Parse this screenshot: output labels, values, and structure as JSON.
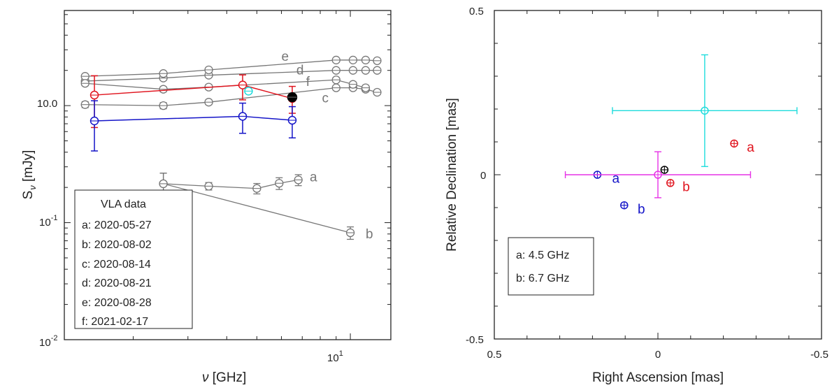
{
  "colors": {
    "gray": "#777777",
    "red": "#e0141e",
    "blue": "#1414c8",
    "cyan": "#1edcdc",
    "magenta": "#e632e6",
    "black": "#000000"
  },
  "chart_data": [
    {
      "type": "scatter",
      "title": "",
      "xlabel": "ν [GHz]",
      "ylabel": "S_ν [mJy]",
      "ylabel_main": "S",
      "ylabel_sub": "ν",
      "ylabel_unit": " [mJy]",
      "xscale": "log",
      "yscale": "log",
      "xlim": [
        1.2,
        13.5
      ],
      "ylim": [
        0.01,
        6.5
      ],
      "xticks": [
        {
          "value": 10,
          "label": "10",
          "base": "10",
          "exp": "1"
        }
      ],
      "yticks": [
        {
          "value": 0.01,
          "label": "10-2",
          "base": "10",
          "exp": "-2"
        },
        {
          "value": 0.1,
          "label": "10-1",
          "base": "10",
          "exp": "-1"
        },
        {
          "value": 1,
          "label": "10.0",
          "base": "10.0",
          "exp": ""
        }
      ],
      "series": [
        {
          "name": "a",
          "color": "gray",
          "x": [
            2.5,
            3.5,
            5.0,
            5.9,
            6.8
          ],
          "y": [
            0.215,
            0.205,
            0.196,
            0.217,
            0.232
          ],
          "yerr": [
            0.05,
            0.015,
            0.02,
            0.025,
            0.025
          ],
          "label_at": [
            7.4,
            0.245
          ]
        },
        {
          "name": "b",
          "color": "gray",
          "x": [
            2.5,
            10.0
          ],
          "y": [
            0.215,
            0.082
          ],
          "yerr": [
            0.05,
            0.01
          ],
          "label_at": [
            11.2,
            0.08
          ]
        },
        {
          "name": "c",
          "color": "gray",
          "x": [
            1.4,
            2.5,
            3.5,
            9.0,
            10.2,
            11.2,
            12.2
          ],
          "y": [
            1.02,
            1.0,
            1.07,
            1.42,
            1.42,
            1.38,
            1.3
          ],
          "yerr": [
            0.06,
            0.06,
            0.05,
            0.06,
            0.06,
            0.06,
            0.06
          ],
          "label_at": [
            8.1,
            1.16
          ]
        },
        {
          "name": "d",
          "color": "gray",
          "x": [
            1.4,
            2.5,
            3.5,
            9.0,
            10.2,
            11.2,
            12.2
          ],
          "y": [
            1.62,
            1.72,
            1.82,
            2.0,
            2.0,
            2.0,
            2.0
          ],
          "yerr": [
            0.07,
            0.07,
            0.07,
            0.07,
            0.07,
            0.07,
            0.07
          ],
          "label_at": [
            6.7,
            2.0
          ]
        },
        {
          "name": "e",
          "color": "gray",
          "x": [
            1.4,
            2.5,
            3.5,
            9.0,
            10.2,
            11.2,
            12.2
          ],
          "y": [
            1.78,
            1.88,
            2.02,
            2.45,
            2.45,
            2.45,
            2.42
          ],
          "yerr": [
            0.07,
            0.07,
            0.07,
            0.07,
            0.07,
            0.07,
            0.07
          ],
          "label_at": [
            6.0,
            2.62
          ]
        },
        {
          "name": "f",
          "color": "gray",
          "x": [
            1.4,
            2.5,
            3.5,
            9.0,
            10.2,
            11.2
          ],
          "y": [
            1.55,
            1.38,
            1.44,
            1.66,
            1.52,
            1.42
          ],
          "yerr": [
            0.07,
            0.07,
            0.07,
            0.07,
            0.07,
            0.07
          ],
          "label_at": [
            7.2,
            1.6
          ]
        },
        {
          "name": "red",
          "color": "red",
          "x": [
            1.5,
            4.5,
            6.5
          ],
          "y": [
            1.23,
            1.5,
            1.15
          ],
          "yerr": [
            [
              0.58,
              0.57
            ],
            [
              0.38,
              0.33
            ],
            [
              0.29,
              0.31
            ]
          ]
        },
        {
          "name": "blue",
          "color": "blue",
          "x": [
            1.5,
            4.5,
            6.5
          ],
          "y": [
            0.74,
            0.81,
            0.75
          ],
          "yerr": [
            [
              0.33,
              0.36
            ],
            [
              0.23,
              0.24
            ],
            [
              0.22,
              0.23
            ]
          ]
        },
        {
          "name": "cyan",
          "color": "cyan",
          "x": [
            4.7
          ],
          "y": [
            1.33
          ],
          "yerr": [
            0.04
          ]
        },
        {
          "name": "black",
          "color": "black",
          "x": [
            6.5
          ],
          "y": [
            1.18
          ],
          "yerr": [
            0.07
          ],
          "filled": true
        }
      ],
      "legend": {
        "title": "VLA data",
        "entries": [
          "a: 2020-05-27",
          "b: 2020-08-02",
          "c: 2020-08-14",
          "d: 2020-08-21",
          "e: 2020-08-28",
          "f:  2021-02-17"
        ],
        "placement": "bottom-left"
      }
    },
    {
      "type": "scatter",
      "title": "",
      "xlabel": "Right Ascension [mas]",
      "ylabel": "Relative Declination [mas]",
      "xlim": [
        0.5,
        -0.5
      ],
      "ylim": [
        -0.5,
        0.5
      ],
      "xticks": [
        {
          "value": 0.5,
          "label": "0.5"
        },
        {
          "value": 0,
          "label": "0"
        },
        {
          "value": -0.5,
          "label": "-0.5"
        }
      ],
      "yticks": [
        {
          "value": -0.5,
          "label": "-0.5"
        },
        {
          "value": 0,
          "label": "0"
        },
        {
          "value": 0.5,
          "label": "0.5"
        }
      ],
      "points": [
        {
          "name": "a",
          "color": "blue",
          "x": 0.185,
          "y": 0.0,
          "label_at": [
            0.14,
            -0.012
          ]
        },
        {
          "name": "b",
          "color": "blue",
          "x": 0.103,
          "y": -0.093,
          "label_at": [
            0.062,
            -0.105
          ]
        },
        {
          "name": "a",
          "color": "red",
          "x": -0.233,
          "y": 0.095,
          "label_at": [
            -0.272,
            0.083
          ]
        },
        {
          "name": "b",
          "color": "red",
          "x": -0.038,
          "y": -0.025,
          "label_at": [
            -0.075,
            -0.037
          ]
        },
        {
          "name": "",
          "color": "black",
          "x": -0.02,
          "y": 0.015
        },
        {
          "name": "",
          "color": "magenta",
          "x": 0.0,
          "y": 0.0,
          "xerr": 0.283,
          "yerr": 0.07
        },
        {
          "name": "",
          "color": "cyan",
          "x": -0.143,
          "y": 0.195,
          "xerr": 0.282,
          "yerr": 0.17
        }
      ],
      "legend": {
        "entries": [
          "a: 4.5 GHz",
          "b: 6.7 GHz"
        ],
        "placement": "bottom-left"
      }
    }
  ]
}
